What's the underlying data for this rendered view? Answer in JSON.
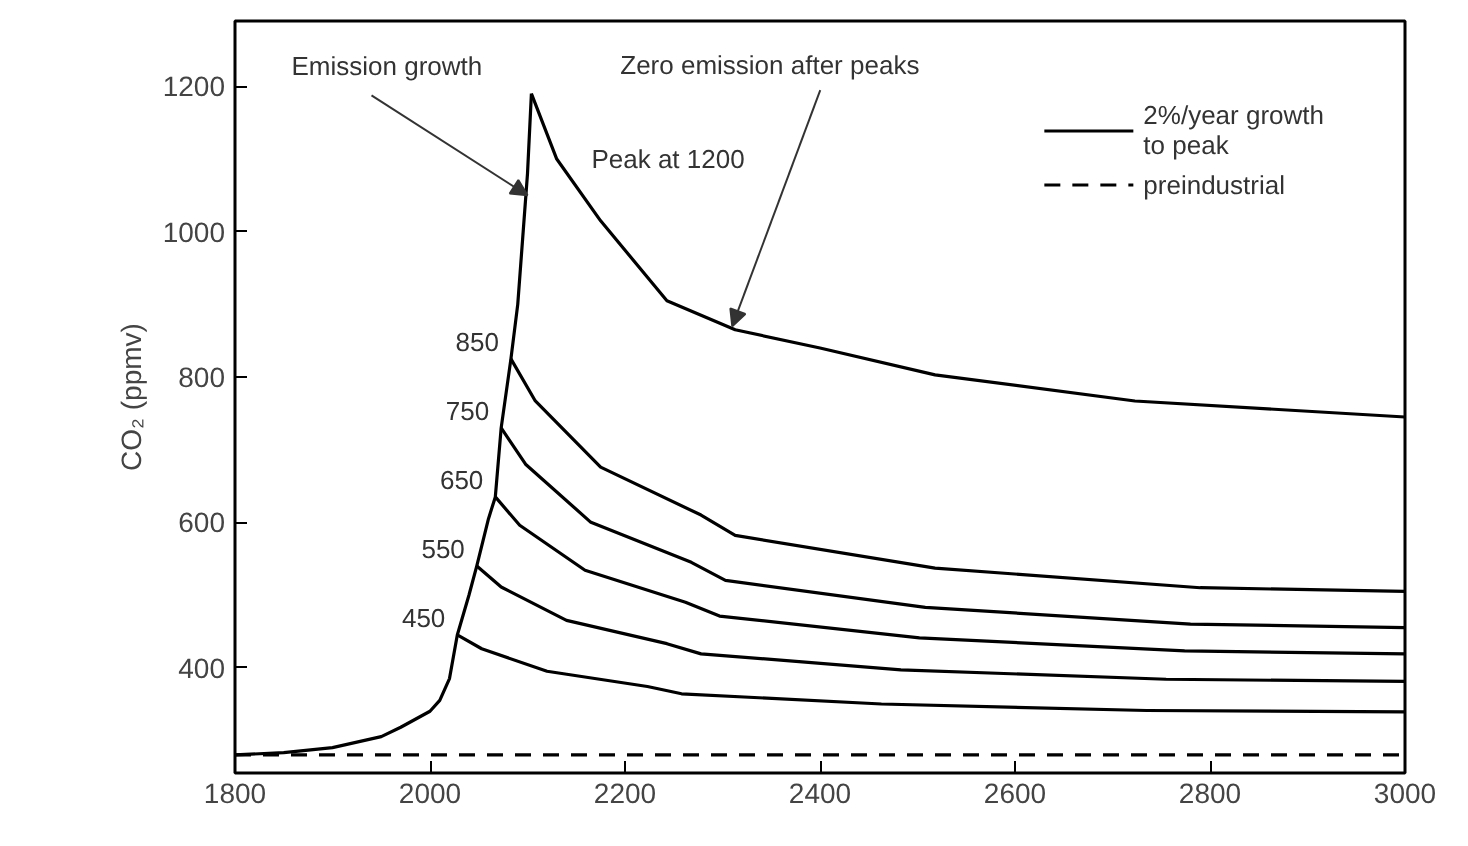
{
  "chart_data": {
    "type": "line",
    "ylabel": "CO₂ (ppmv)",
    "xlim": [
      1800,
      3000
    ],
    "ylim": [
      255,
      1290
    ],
    "xticks": [
      1800,
      2000,
      2200,
      2400,
      2600,
      2800,
      3000
    ],
    "yticks": [
      400,
      600,
      800,
      1000,
      1200
    ],
    "grid": false,
    "legend": "top right",
    "line_style": "solid",
    "marker": "none",
    "series": [
      {
        "name": "2%/year growth\nto peak",
        "color": "#000000",
        "x": [
          1800,
          1850,
          1900,
          1950,
          1970,
          2000,
          2010,
          2020,
          2028,
          2040,
          2048,
          2060,
          2067,
          2073,
          2083,
          2090,
          2100,
          2104
        ],
        "values": [
          280,
          283,
          290,
          305,
          318,
          340,
          355,
          385,
          445,
          500,
          540,
          605,
          635,
          730,
          825,
          900,
          1080,
          1190
        ]
      },
      {
        "color": "#000000",
        "x": [
          2104,
          2130,
          2175,
          2243,
          2313,
          2400,
          2518,
          2723,
          3000
        ],
        "values": [
          1190,
          1100,
          1015,
          905,
          865,
          840,
          803,
          767,
          745
        ]
      },
      {
        "color": "#000000",
        "x": [
          2083,
          2108,
          2175,
          2278,
          2313,
          2518,
          2790,
          3000
        ],
        "values": [
          825,
          767,
          676,
          610,
          582,
          537,
          510,
          505
        ]
      },
      {
        "color": "#000000",
        "x": [
          2073,
          2098,
          2165,
          2268,
          2303,
          2508,
          2780,
          3000
        ],
        "values": [
          730,
          680,
          600,
          545,
          520,
          483,
          460,
          455
        ]
      },
      {
        "color": "#000000",
        "x": [
          2067,
          2092,
          2159,
          2262,
          2297,
          2502,
          2774,
          3000
        ],
        "values": [
          635,
          596,
          534,
          490,
          471,
          441,
          423,
          419
        ]
      },
      {
        "color": "#000000",
        "x": [
          2048,
          2073,
          2140,
          2243,
          2278,
          2483,
          2755,
          3000
        ],
        "values": [
          540,
          511,
          465,
          433,
          419,
          397,
          384,
          381
        ]
      },
      {
        "color": "#000000",
        "x": [
          2028,
          2053,
          2120,
          2223,
          2258,
          2463,
          2735,
          3000
        ],
        "values": [
          445,
          426,
          395,
          374,
          364,
          350,
          341,
          339
        ]
      }
    ],
    "ref_lines": [
      {
        "axis": "y",
        "value": 280,
        "label": "preindustrial",
        "color": "#000000",
        "line_style": "dashed"
      }
    ],
    "annotations": [
      {
        "text": "Emission growth",
        "x": 2100,
        "y": 1050
      },
      {
        "text": "Zero emission after peaks",
        "x": 2310,
        "y": 870
      },
      {
        "text": "Peak at 1200",
        "x": 2104,
        "y": 1190
      },
      {
        "text": "850",
        "x": 2083,
        "y": 825
      },
      {
        "text": "750",
        "x": 2073,
        "y": 730
      },
      {
        "text": "650",
        "x": 2067,
        "y": 635
      },
      {
        "text": "550",
        "x": 2048,
        "y": 540
      },
      {
        "text": "450",
        "x": 2028,
        "y": 445
      }
    ]
  }
}
